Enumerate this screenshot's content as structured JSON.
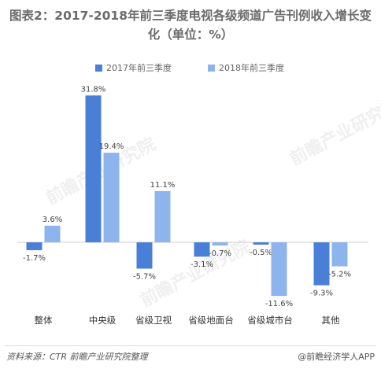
{
  "title_line1": "图表2：2017-2018年前三季度电视各级频道广告刊例收入增长变",
  "title_line2": "化（单位：%）",
  "footer": {
    "source": "资料来源：CTR  前瞻产业研究院整理",
    "brand": "@前瞻经济学人APP"
  },
  "watermark": "前瞻产业研究院",
  "chart_data": {
    "type": "bar",
    "categories": [
      "整体",
      "中央级",
      "省级卫视",
      "省级地面台",
      "省级城市台",
      "其他"
    ],
    "series": [
      {
        "name": "2017年前三季度",
        "color": "#4a7fd8",
        "values": [
          -1.7,
          31.8,
          -5.7,
          -3.1,
          -0.5,
          -9.3
        ]
      },
      {
        "name": "2018年前三季度",
        "color": "#8db4ec",
        "values": [
          3.6,
          19.4,
          11.1,
          -0.7,
          -11.6,
          -5.2
        ]
      }
    ],
    "value_labels": [
      [
        "-1.7%",
        "31.8%",
        "-5.7%",
        "-3.1%",
        "-0.5%",
        "-9.3%"
      ],
      [
        "3.6%",
        "19.4%",
        "11.1%",
        "-0.7%",
        "-11.6%",
        "-5.2%"
      ]
    ],
    "legend_position": "top-center",
    "grid": false
  }
}
